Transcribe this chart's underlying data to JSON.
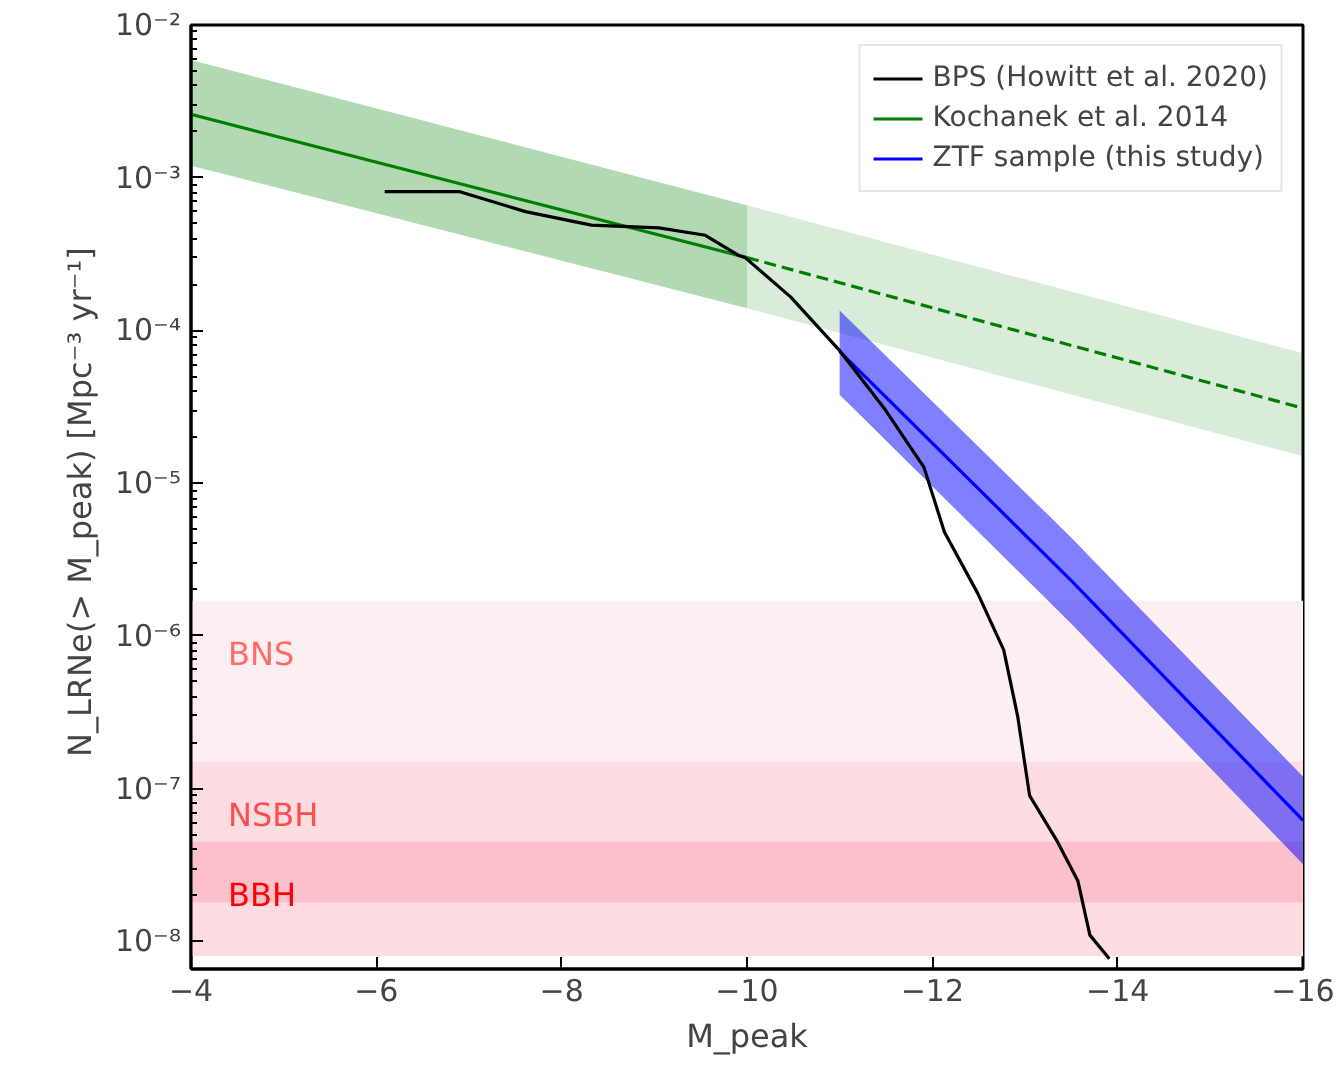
{
  "chart_data": {
    "type": "line",
    "xlabel": "M_peak",
    "ylabel": "N_LRNe(> M_peak)  [Mpc⁻³ yr⁻¹]",
    "xlim": [
      -4,
      -16
    ],
    "ylim": [
      6.6e-09,
      0.01
    ],
    "log": "y",
    "grid": false,
    "legend": "top right",
    "xticks": [
      {
        "value": -4,
        "label": "−4"
      },
      {
        "value": -6,
        "label": "−6"
      },
      {
        "value": -8,
        "label": "−8"
      },
      {
        "value": -10,
        "label": "−10"
      },
      {
        "value": -12,
        "label": "−12"
      },
      {
        "value": -14,
        "label": "−14"
      },
      {
        "value": -16,
        "label": "−16"
      }
    ],
    "yticks": [
      {
        "value": 1e-08,
        "label": "10⁻⁸"
      },
      {
        "value": 1e-07,
        "label": "10⁻⁷"
      },
      {
        "value": 1e-06,
        "label": "10⁻⁶"
      },
      {
        "value": 1e-05,
        "label": "10⁻⁵"
      },
      {
        "value": 0.0001,
        "label": "10⁻⁴"
      },
      {
        "value": 0.001,
        "label": "10⁻³"
      },
      {
        "value": 0.01,
        "label": "10⁻²"
      }
    ],
    "bands": [
      {
        "axis": "y",
        "from": 1.5e-07,
        "to": 1.7e-06,
        "label": "BNS",
        "color": "#fdeff1"
      },
      {
        "axis": "y",
        "from": 8e-09,
        "to": 1.5e-07,
        "label": "NSBH",
        "color": "#fddde2"
      },
      {
        "axis": "y",
        "from": 1.8e-08,
        "to": 4.5e-08,
        "label": "BBH",
        "color": "#fcc0ca"
      }
    ],
    "series": [
      {
        "name": "BPS (Howitt et al. 2020)",
        "color": "#000000",
        "line_style": "solid",
        "x": [
          -6.09,
          -6.9,
          -7.61,
          -8.32,
          -9.05,
          -9.55,
          -9.91,
          -9.98,
          -10.47,
          -10.99,
          -11.48,
          -11.91,
          -12.13,
          -12.49,
          -12.77,
          -12.92,
          -13.05,
          -13.35,
          -13.57,
          -13.7,
          -13.91
        ],
        "values": [
          0.00081,
          0.00081,
          0.0006,
          0.00049,
          0.00047,
          0.00042,
          0.00031,
          0.0003,
          0.000166,
          7.5e-05,
          3.1e-05,
          1.27e-05,
          4.8e-06,
          1.9e-06,
          8.1e-07,
          3e-07,
          9e-08,
          4.5e-08,
          2.5e-08,
          1.1e-08,
          7.7e-09
        ]
      },
      {
        "name": "Kochanek et al. 2014",
        "color": "#008000",
        "line_style": "solid",
        "x": [
          -4,
          -10
        ],
        "values": [
          0.0026,
          0.0003
        ],
        "lower": [
          0.0012,
          0.00014
        ],
        "upper": [
          0.0059,
          0.00066
        ]
      },
      {
        "color": "#008000",
        "line_style": "dashed",
        "x": [
          -10,
          -16
        ],
        "values": [
          0.0003,
          3.1e-05
        ],
        "lower": [
          0.00014,
          1.5e-05
        ],
        "upper": [
          0.00066,
          7.1e-05
        ]
      },
      {
        "name": "ZTF sample (this study)",
        "color": "#0000ff",
        "line_style": "solid",
        "x": [
          -11,
          -13.5,
          -16
        ],
        "values": [
          7.3e-05,
          2.3e-06,
          6.2e-08
        ],
        "lower": [
          3.8e-05,
          1.2e-06,
          3.2e-08
        ],
        "upper": [
          0.000135,
          4.4e-06,
          1.2e-07
        ]
      }
    ]
  }
}
